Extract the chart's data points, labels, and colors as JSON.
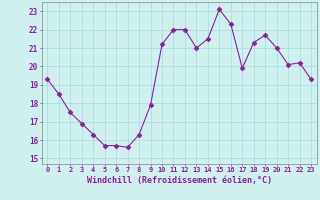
{
  "x": [
    0,
    1,
    2,
    3,
    4,
    5,
    6,
    7,
    8,
    9,
    10,
    11,
    12,
    13,
    14,
    15,
    16,
    17,
    18,
    19,
    20,
    21,
    22,
    23
  ],
  "y": [
    19.3,
    18.5,
    17.5,
    16.9,
    16.3,
    15.7,
    15.7,
    15.6,
    16.3,
    17.9,
    21.2,
    22.0,
    22.0,
    21.0,
    21.5,
    23.1,
    22.3,
    19.9,
    21.3,
    21.7,
    21.0,
    20.1,
    20.2,
    19.3
  ],
  "line_color": "#882299",
  "marker": "D",
  "marker_size": 2.5,
  "bg_color": "#d0f0f0",
  "grid_color": "#aadddd",
  "xlabel": "Windchill (Refroidissement éolien,°C)",
  "xlabel_color": "#882299",
  "tick_color": "#882299",
  "spine_color": "#888888",
  "ylim": [
    14.7,
    23.5
  ],
  "yticks": [
    15,
    16,
    17,
    18,
    19,
    20,
    21,
    22,
    23
  ],
  "xlim": [
    -0.5,
    23.5
  ],
  "xticks": [
    0,
    1,
    2,
    3,
    4,
    5,
    6,
    7,
    8,
    9,
    10,
    11,
    12,
    13,
    14,
    15,
    16,
    17,
    18,
    19,
    20,
    21,
    22,
    23
  ],
  "xlabel_fontsize": 6,
  "xtick_fontsize": 5,
  "ytick_fontsize": 5.5
}
